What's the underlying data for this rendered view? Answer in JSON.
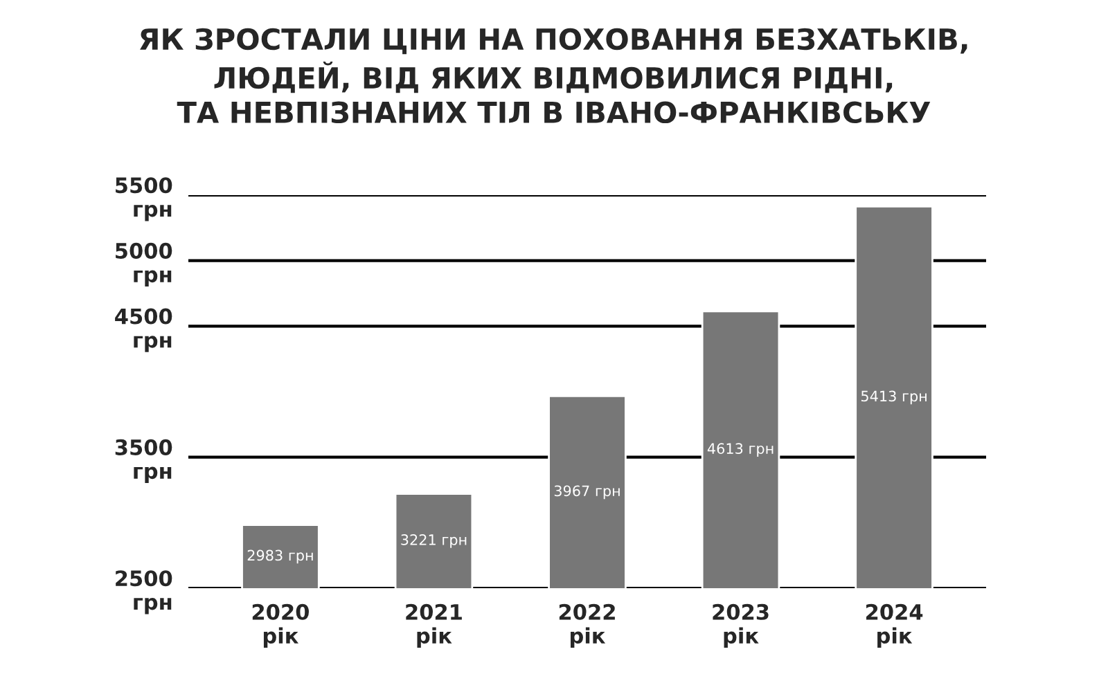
{
  "chart_data": {
    "type": "bar",
    "title": "ЯК ЗРОСТАЛИ ЦІНИ НА ПОХОВАННЯ БЕЗХАТЬКІВ,\nЛЮДЕЙ, ВІД ЯКИХ ВІДМОВИЛИСЯ РІДНІ,\nТА НЕВПІЗНАНИХ ТІЛ В ІВАНО-ФРАНКІВСЬКУ",
    "categories": [
      "2020\nрік",
      "2021\nрік",
      "2022\nрік",
      "2023\nрік",
      "2024\nрік"
    ],
    "values": [
      2983,
      3221,
      3967,
      4613,
      5413
    ],
    "value_labels": [
      "2983 грн",
      "3221 грн",
      "3967 грн",
      "4613 грн",
      "5413 грн"
    ],
    "color": "#777777",
    "ylim": [
      2500,
      5500
    ],
    "yticks": [
      {
        "value": 2500,
        "label": "2500\nгрн"
      },
      {
        "value": 3500,
        "label": "3500\nгрн"
      },
      {
        "value": 4500,
        "label": "4500\nгрн"
      },
      {
        "value": 5000,
        "label": "5000\nгрн"
      },
      {
        "value": 5500,
        "label": "5500\nгрн"
      }
    ],
    "grid": "y"
  }
}
